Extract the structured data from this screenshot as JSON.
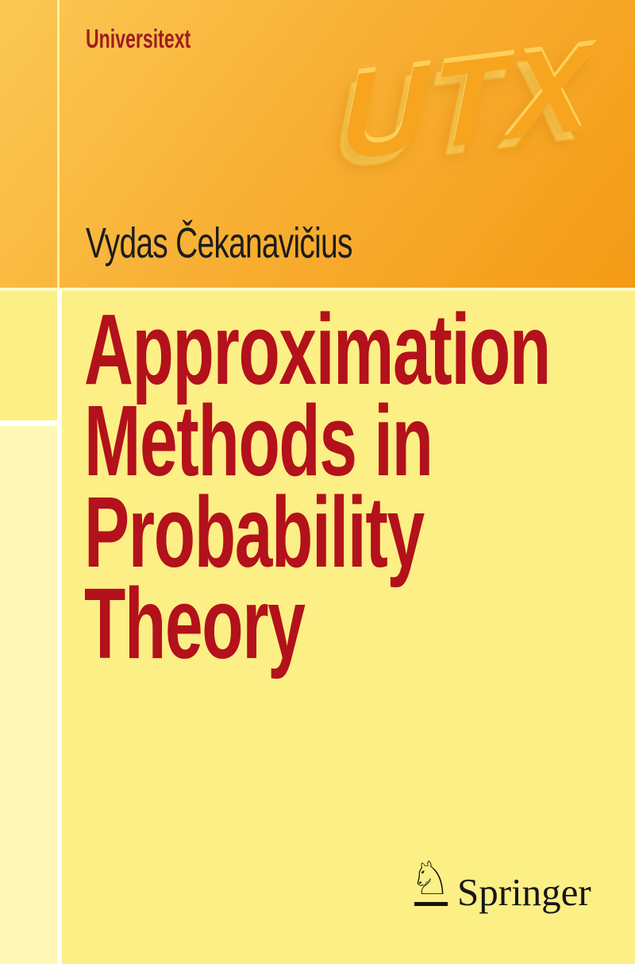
{
  "series": {
    "label": "Universitext"
  },
  "utx_logo": {
    "text": "UTX"
  },
  "author": {
    "name": "Vydas Čekanavičius"
  },
  "title": {
    "lines": [
      "Approximation",
      "Methods in",
      "Probability",
      "Theory"
    ]
  },
  "publisher": {
    "name": "Springer",
    "icon_glyph": "♘"
  },
  "colors": {
    "band_orange_start": "#FBC854",
    "band_orange_end": "#F49B16",
    "body_yellow": "#FCEF85",
    "left_column_pale": "#FEF7B5",
    "divider_white": "#FFFFFF",
    "series_red": "#A01D20",
    "title_red": "#B3111B",
    "text_black": "#1C1C1C",
    "utx_face_orange": "#F7A41F",
    "utx_bevel_yellow": "#FFD763"
  }
}
